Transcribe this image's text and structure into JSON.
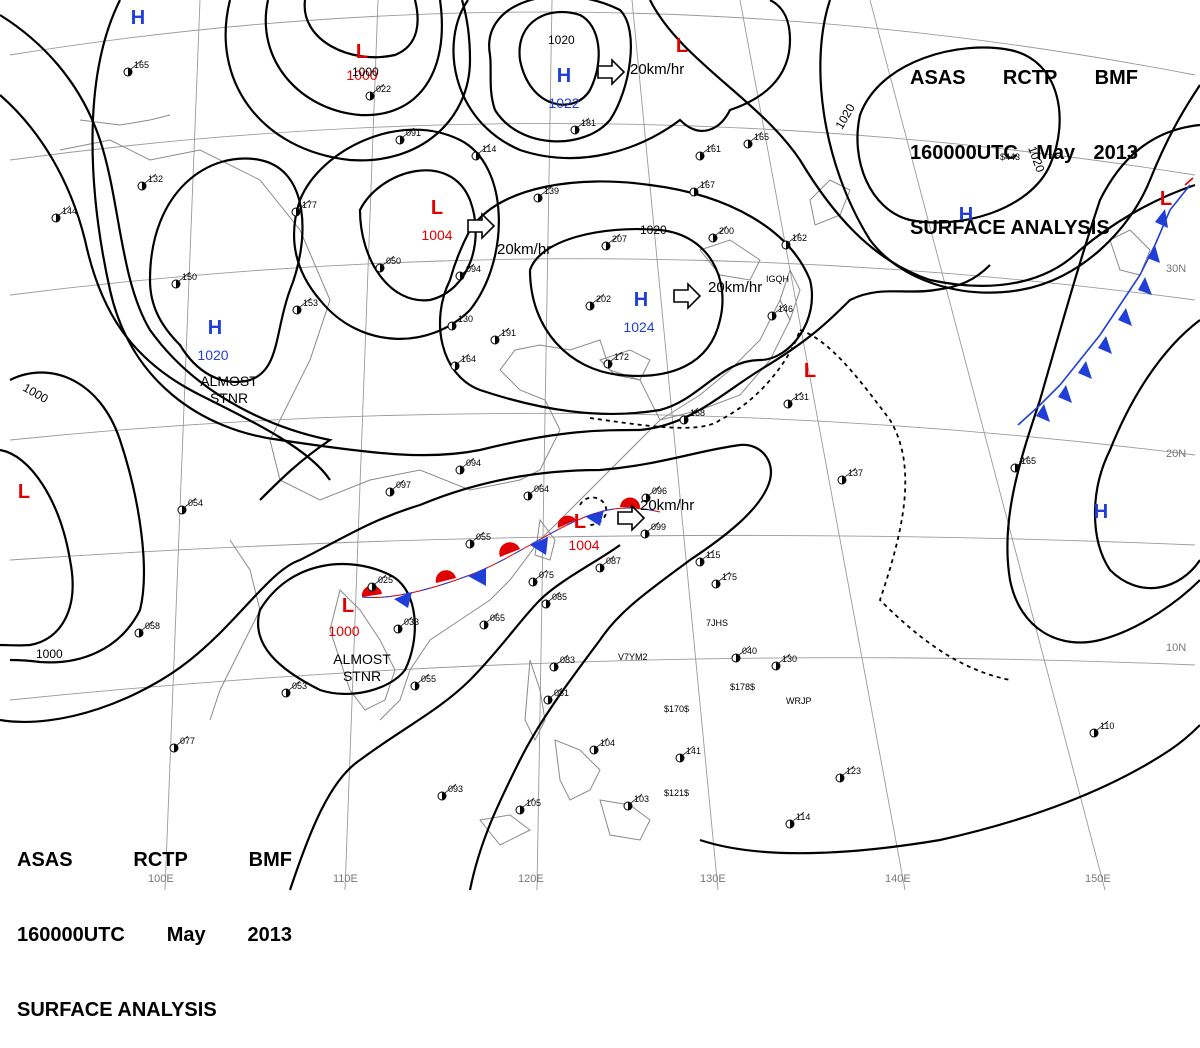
{
  "chart": {
    "agency": "ASAS",
    "station": "RCTP",
    "office": "BMF",
    "valid_time": "160000UTC",
    "month": "May",
    "year": "2013",
    "product": "SURFACE ANALYSIS"
  },
  "pressure_centers": [
    {
      "kind": "L",
      "value": "1000",
      "color": "#e00000"
    },
    {
      "kind": "H",
      "value": "1022",
      "color": "#1f3fd8"
    },
    {
      "kind": "L",
      "value": "",
      "color": "#e00000"
    },
    {
      "kind": "L",
      "value": "1004",
      "color": "#e00000"
    },
    {
      "kind": "H",
      "value": "1024",
      "color": "#1f3fd8"
    },
    {
      "kind": "H",
      "value": "1020",
      "color": "#1f3fd8",
      "note": "ALMOST\nSTNR"
    },
    {
      "kind": "L",
      "value": "1004",
      "color": "#e00000"
    },
    {
      "kind": "L",
      "value": "1000",
      "color": "#e00000",
      "note": "ALMOST\nSTNR"
    },
    {
      "kind": "L",
      "value": "",
      "color": "#e00000"
    },
    {
      "kind": "H",
      "value": "",
      "color": "#1f3fd8"
    },
    {
      "kind": "H",
      "value": "",
      "color": "#1f3fd8"
    },
    {
      "kind": "L",
      "value": "",
      "color": "#e00000"
    },
    {
      "kind": "H",
      "value": "",
      "color": "#1f3fd8"
    },
    {
      "kind": "L",
      "value": "",
      "color": "#e00000"
    },
    {
      "kind": "H",
      "value": "",
      "color": "#1f3fd8"
    }
  ],
  "motion_vectors": [
    "20km/hr",
    "20km/hr",
    "20km/hr",
    "20km/hr"
  ],
  "isobar_labels": [
    "1020",
    "1020",
    "1020",
    "1020",
    "1000",
    "1000",
    "1000",
    "1020"
  ],
  "longitude_labels": [
    "100E",
    "110E",
    "120E",
    "130E",
    "140E",
    "150E"
  ],
  "latitude_labels": [
    "30N",
    "20N",
    "10N"
  ],
  "station_values": [
    "165",
    "022",
    "181",
    "114",
    "091",
    "050",
    "094",
    "130",
    "164",
    "191",
    "207",
    "202",
    "139",
    "167",
    "161",
    "165",
    "200",
    "162",
    "146",
    "131",
    "137",
    "165",
    "097",
    "094",
    "064",
    "096",
    "099",
    "115",
    "055",
    "075",
    "087",
    "085",
    "065",
    "033",
    "025",
    "053",
    "055",
    "083",
    "081",
    "104",
    "141",
    "123",
    "114",
    "110",
    "105",
    "093",
    "103",
    "040",
    "130",
    "175",
    "150",
    "153",
    "177",
    "132",
    "144",
    "054",
    "058",
    "077",
    "172",
    "168"
  ],
  "ship_ids": [
    "7JHS",
    "V7YM2",
    "WRJP",
    "$170$",
    "$178$",
    "$121$",
    "$443",
    "IGQH"
  ],
  "colors": {
    "warm_front": "#e00000",
    "cold_front": "#1f3fd8",
    "isobar": "#000000",
    "grid": "#999999",
    "coast": "#8a8a8a"
  }
}
